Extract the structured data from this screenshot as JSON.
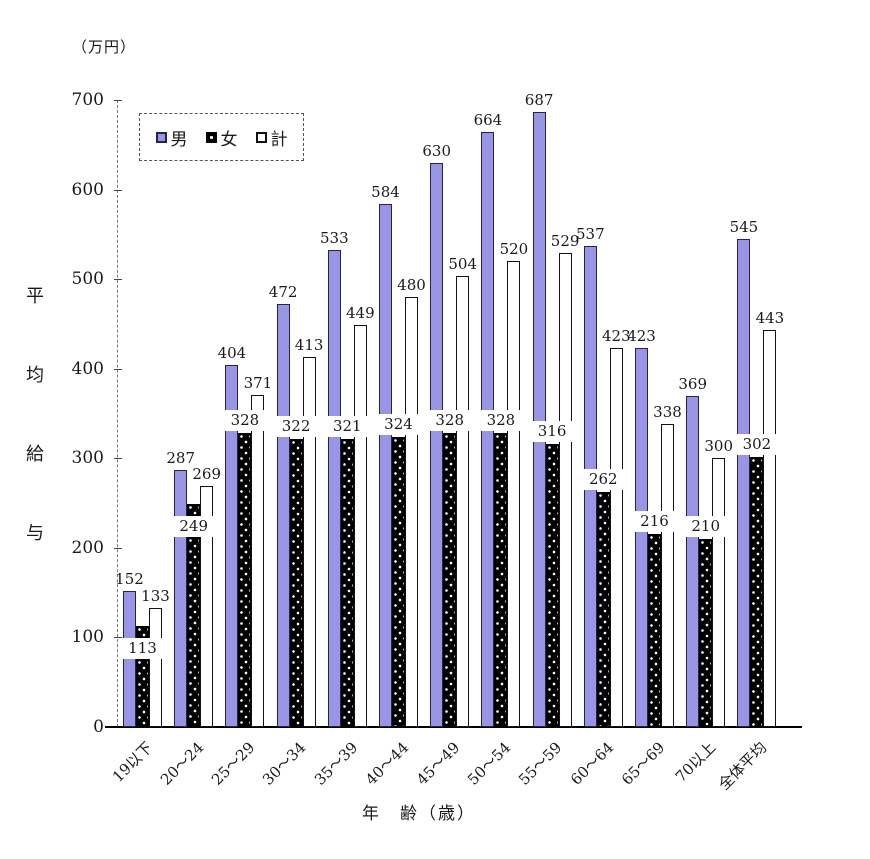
{
  "figure": {
    "unit_label": "（万円）",
    "xlabel": "年　齢（歳）"
  },
  "chart_data": {
    "type": "bar",
    "title": "",
    "unit": "万円",
    "categories": [
      "19以下",
      "20〜24",
      "25〜29",
      "30〜34",
      "35〜39",
      "40〜44",
      "45〜49",
      "50〜54",
      "55〜59",
      "60〜64",
      "65〜69",
      "70以上",
      "全体平均"
    ],
    "series": [
      {
        "name": "男",
        "color": "#9795e4",
        "values": [
          152,
          287,
          404,
          472,
          533,
          584,
          630,
          664,
          687,
          537,
          423,
          369,
          545
        ]
      },
      {
        "name": "女",
        "color": "#000000",
        "values": [
          113,
          249,
          328,
          322,
          321,
          324,
          328,
          328,
          316,
          262,
          216,
          210,
          302
        ]
      },
      {
        "name": "計",
        "color": "#ffffff",
        "values": [
          133,
          269,
          371,
          413,
          449,
          480,
          504,
          520,
          529,
          423,
          338,
          300,
          443
        ]
      }
    ],
    "xlabel": "年齢（歳）",
    "ylabel": "平均給与",
    "ylim": [
      0,
      700
    ],
    "y_ticks": [
      0,
      100,
      200,
      300,
      400,
      500,
      600,
      700
    ],
    "grid": false,
    "legend_position": "top-left"
  }
}
